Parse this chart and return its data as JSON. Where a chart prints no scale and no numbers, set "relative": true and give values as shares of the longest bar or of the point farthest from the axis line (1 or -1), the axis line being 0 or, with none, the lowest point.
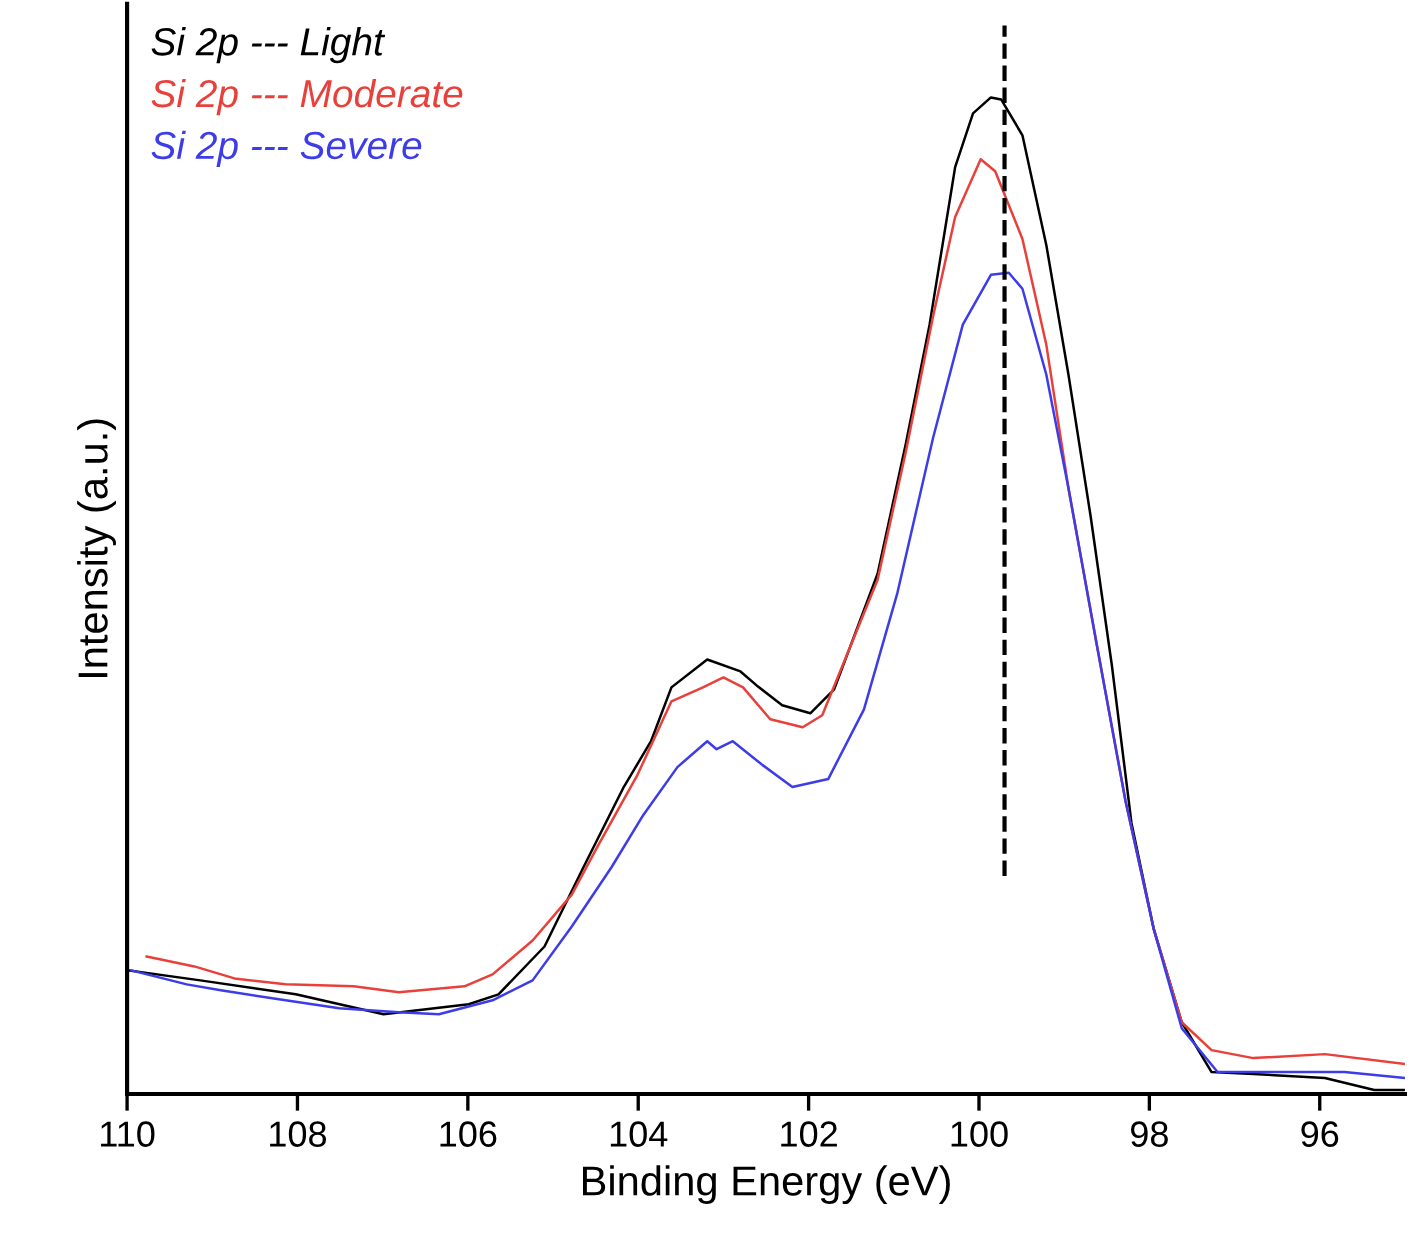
{
  "chart_data": {
    "type": "line",
    "xlabel": "Binding Energy (eV)",
    "ylabel": "Intensity (a.u.)",
    "relative": true,
    "xlim": [
      110,
      95
    ],
    "xticks": [
      110,
      108,
      106,
      104,
      102,
      100,
      98,
      96
    ],
    "grid": false,
    "legend": "top left",
    "marker": "none",
    "line_style": "solid",
    "ref_lines": [
      {
        "axis": "x",
        "value": 99.7,
        "color": "#000000",
        "line_style": "dashed"
      }
    ],
    "series": [
      {
        "name": "Si 2p --- Light",
        "color": "#000000",
        "x": [
          109.98,
          109.14,
          108.02,
          106.99,
          105.99,
          105.64,
          105.1,
          104.64,
          104.17,
          103.85,
          103.61,
          103.19,
          102.8,
          102.61,
          102.31,
          101.98,
          101.7,
          101.19,
          100.86,
          100.58,
          100.28,
          100.07,
          99.86,
          99.74,
          99.49,
          99.21,
          98.95,
          98.69,
          98.44,
          98.21,
          97.95,
          97.62,
          97.27,
          96.78,
          95.94,
          95.36,
          95.0
        ],
        "values": [
          0.124,
          0.114,
          0.1,
          0.08,
          0.09,
          0.1,
          0.148,
          0.228,
          0.308,
          0.354,
          0.408,
          0.436,
          0.424,
          0.41,
          0.39,
          0.382,
          0.406,
          0.522,
          0.652,
          0.772,
          0.93,
          0.984,
          1.0,
          0.998,
          0.962,
          0.852,
          0.722,
          0.58,
          0.43,
          0.272,
          0.166,
          0.072,
          0.022,
          0.02,
          0.016,
          0.004,
          0.004
        ]
      },
      {
        "name": "Si 2p --- Moderate",
        "color": "#e8413c",
        "x": [
          109.77,
          109.21,
          108.74,
          108.14,
          107.34,
          106.81,
          106.04,
          105.71,
          105.24,
          104.78,
          104.48,
          104.01,
          103.61,
          103.24,
          103.0,
          102.77,
          102.45,
          102.07,
          101.84,
          101.19,
          100.86,
          100.54,
          100.28,
          99.98,
          99.81,
          99.49,
          99.21,
          98.95,
          98.62,
          98.28,
          97.95,
          97.62,
          97.27,
          96.78,
          95.94,
          95.0
        ],
        "values": [
          0.138,
          0.128,
          0.116,
          0.11,
          0.108,
          0.102,
          0.108,
          0.12,
          0.154,
          0.2,
          0.248,
          0.32,
          0.394,
          0.408,
          0.418,
          0.408,
          0.376,
          0.368,
          0.38,
          0.516,
          0.644,
          0.78,
          0.88,
          0.938,
          0.926,
          0.858,
          0.752,
          0.608,
          0.452,
          0.294,
          0.166,
          0.072,
          0.044,
          0.036,
          0.04,
          0.03
        ]
      },
      {
        "name": "Si 2p --- Severe",
        "color": "#3c3ce8",
        "x": [
          109.95,
          109.3,
          108.9,
          108.14,
          107.51,
          106.81,
          106.34,
          105.71,
          105.24,
          104.78,
          104.31,
          103.94,
          103.54,
          103.19,
          103.08,
          102.89,
          102.54,
          102.19,
          101.77,
          101.35,
          100.96,
          100.54,
          100.19,
          99.86,
          99.65,
          99.49,
          99.21,
          98.95,
          98.62,
          98.28,
          97.95,
          97.62,
          97.2,
          96.62,
          95.71,
          95.0
        ],
        "values": [
          0.124,
          0.11,
          0.104,
          0.094,
          0.086,
          0.082,
          0.08,
          0.094,
          0.114,
          0.168,
          0.228,
          0.28,
          0.328,
          0.354,
          0.346,
          0.354,
          0.33,
          0.308,
          0.316,
          0.386,
          0.502,
          0.658,
          0.772,
          0.822,
          0.824,
          0.808,
          0.722,
          0.608,
          0.452,
          0.294,
          0.166,
          0.066,
          0.022,
          0.022,
          0.022,
          0.016
        ]
      }
    ]
  }
}
